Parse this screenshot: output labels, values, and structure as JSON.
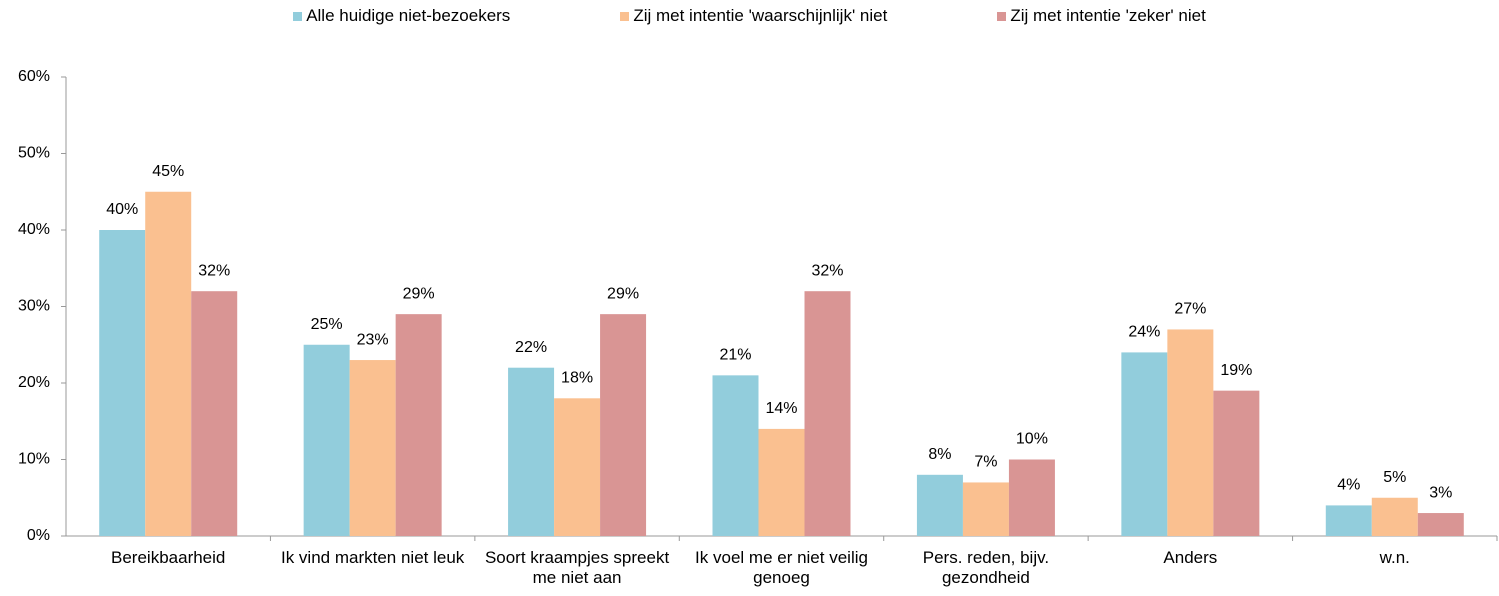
{
  "chart_data": {
    "type": "bar",
    "categories": [
      "Bereikbaarheid",
      "Ik vind markten niet leuk",
      "Soort kraampjes spreekt me niet aan",
      "Ik voel me er niet veilig genoeg",
      "Pers. reden, bijv. gezondheid",
      "Anders",
      "w.n."
    ],
    "series": [
      {
        "name": "Alle huidige niet-bezoekers",
        "color": "#92cddc",
        "values": [
          40,
          25,
          22,
          21,
          8,
          24,
          4
        ],
        "value_labels": [
          "40%",
          "25%",
          "22%",
          "21%",
          "8%",
          "24%",
          "4%"
        ]
      },
      {
        "name": "Zij met intentie 'waarschijnlijk' niet",
        "color": "#fac090",
        "values": [
          45,
          23,
          18,
          14,
          7,
          27,
          5
        ],
        "value_labels": [
          "45%",
          "23%",
          "18%",
          "14%",
          "7%",
          "27%",
          "5%"
        ]
      },
      {
        "name": "Zij met intentie 'zeker' niet",
        "color": "#d99594",
        "values": [
          32,
          29,
          29,
          32,
          10,
          19,
          3
        ],
        "value_labels": [
          "32%",
          "29%",
          "29%",
          "32%",
          "10%",
          "19%",
          "3%"
        ]
      }
    ],
    "ylim": [
      0,
      60
    ],
    "yticks": [
      {
        "value": 0,
        "label": "0%"
      },
      {
        "value": 10,
        "label": "10%"
      },
      {
        "value": 20,
        "label": "20%"
      },
      {
        "value": 30,
        "label": "30%"
      },
      {
        "value": 40,
        "label": "40%"
      },
      {
        "value": 50,
        "label": "50%"
      },
      {
        "value": 60,
        "label": "60%"
      }
    ],
    "grid": false,
    "legend": "top"
  }
}
